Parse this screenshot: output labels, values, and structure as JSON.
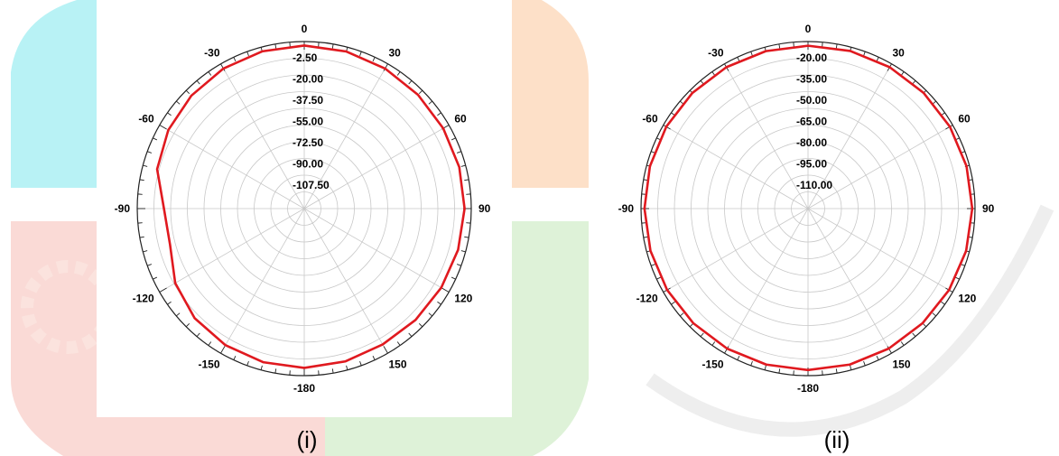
{
  "figure": {
    "captions": [
      "(i)",
      "(ii)"
    ]
  },
  "colors": {
    "trace": "#e0191f",
    "grid": "#c8c8c8",
    "outer_ring": "#222222",
    "background": "#ffffff",
    "watermark_cyan": "#b8f2f5",
    "watermark_orange": "#fde0c8",
    "watermark_red": "#fadad6",
    "watermark_green": "#def2d8",
    "watermark_gray": "#eeeeee"
  },
  "chart_data": [
    {
      "type": "polar",
      "caption": "(i)",
      "angle_unit": "degrees",
      "angle_zero": "top",
      "angle_direction": "clockwise",
      "angle_tick_labels": [
        "0",
        "30",
        "60",
        "90",
        "120",
        "150",
        "-180",
        "-150",
        "-120",
        "-90",
        "-60",
        "-30"
      ],
      "radial_tick_labels": [
        "-2.50",
        "-20.00",
        "-37.50",
        "-55.00",
        "-72.50",
        "-90.00",
        "-107.50"
      ],
      "rlim": [
        -125,
        0
      ],
      "grid": true,
      "series": [
        {
          "angles": [
            0,
            15,
            30,
            45,
            60,
            75,
            90,
            105,
            120,
            135,
            150,
            165,
            180,
            -165,
            -150,
            -135,
            -120,
            -105,
            -90,
            -75,
            -60,
            -45,
            -30,
            -15,
            0
          ],
          "values": [
            -3.0,
            -3.3,
            -4.0,
            -4.6,
            -4.9,
            -4.9,
            -5.0,
            -5.8,
            -6.6,
            -7.2,
            -7.6,
            -6.6,
            -5.8,
            -6.0,
            -7.0,
            -9.0,
            -13.5,
            -21.0,
            -20.0,
            -11.0,
            -7.5,
            -5.5,
            -4.0,
            -3.2,
            -3.0
          ]
        }
      ]
    },
    {
      "type": "polar",
      "caption": "(ii)",
      "angle_unit": "degrees",
      "angle_zero": "top",
      "angle_direction": "clockwise",
      "angle_tick_labels": [
        "0",
        "30",
        "60",
        "90",
        "120",
        "150",
        "-180",
        "-150",
        "-120",
        "-90",
        "-60",
        "-30"
      ],
      "radial_tick_labels": [
        "-20.00",
        "-35.00",
        "-50.00",
        "-65.00",
        "-80.00",
        "-95.00",
        "-110.00"
      ],
      "rlim": [
        -125,
        -5
      ],
      "grid": true,
      "series": [
        {
          "angles": [
            0,
            15,
            30,
            45,
            60,
            75,
            90,
            105,
            120,
            135,
            150,
            165,
            180,
            -165,
            -150,
            -135,
            -120,
            -105,
            -90,
            -75,
            -60,
            -45,
            -30,
            -15,
            0
          ],
          "values": [
            -8.0,
            -7.8,
            -7.7,
            -7.5,
            -7.3,
            -7.1,
            -7.0,
            -7.4,
            -8.0,
            -8.6,
            -8.9,
            -9.0,
            -9.0,
            -9.0,
            -8.8,
            -8.5,
            -8.1,
            -7.8,
            -7.5,
            -7.4,
            -7.4,
            -7.5,
            -7.7,
            -7.9,
            -8.0
          ]
        }
      ]
    }
  ]
}
